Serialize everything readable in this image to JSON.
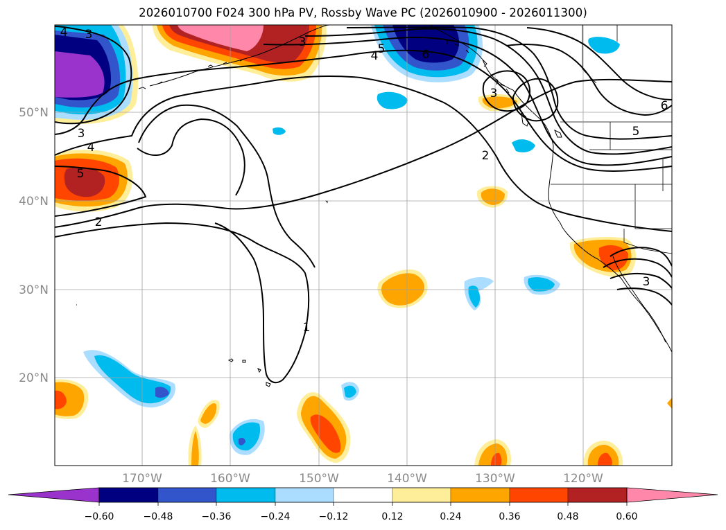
{
  "title": "2026010700 F024 300 hPa PV, Rossby Wave PC (2026010900 - 2026011300)",
  "lat_labels": [
    {
      "label": "50°N",
      "value": 50
    },
    {
      "label": "40°N",
      "value": 40
    },
    {
      "label": "30°N",
      "value": 30
    },
    {
      "label": "20°N",
      "value": 20
    }
  ],
  "lon_labels": [
    {
      "label": "170°W",
      "value": -170
    },
    {
      "label": "160°W",
      "value": -160
    },
    {
      "label": "150°W",
      "value": -150
    },
    {
      "label": "140°W",
      "value": -140
    },
    {
      "label": "130°W",
      "value": -130
    },
    {
      "label": "120°W",
      "value": -120
    }
  ],
  "colorbar": {
    "colors": [
      "#9933cc",
      "#000080",
      "#3355cc",
      "#00bbee",
      "#aaddff",
      "#ffffff",
      "#ffee99",
      "#ffa500",
      "#ff4500",
      "#b22222",
      "#ff88aa"
    ],
    "tick_labels": [
      "−0.60",
      "−0.48",
      "−0.36",
      "−0.24",
      "−0.12",
      "0.12",
      "0.24",
      "0.36",
      "0.48",
      "0.60"
    ]
  },
  "contour_labels": [
    {
      "text": "3"
    },
    {
      "text": "4"
    },
    {
      "text": "4"
    },
    {
      "text": "5"
    },
    {
      "text": "6"
    },
    {
      "text": "3"
    },
    {
      "text": "4"
    },
    {
      "text": "5"
    },
    {
      "text": "2"
    },
    {
      "text": "3"
    },
    {
      "text": "2"
    },
    {
      "text": "5"
    },
    {
      "text": "6"
    },
    {
      "text": "1"
    },
    {
      "text": "3"
    },
    {
      "text": "3"
    }
  ]
}
